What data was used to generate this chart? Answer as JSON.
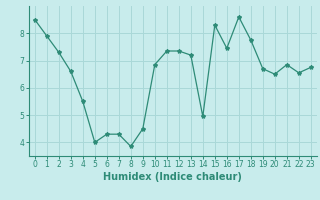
{
  "x": [
    0,
    1,
    2,
    3,
    4,
    5,
    6,
    7,
    8,
    9,
    10,
    11,
    12,
    13,
    14,
    15,
    16,
    17,
    18,
    19,
    20,
    21,
    22,
    23
  ],
  "y": [
    8.5,
    7.9,
    7.3,
    6.6,
    5.5,
    4.0,
    4.3,
    4.3,
    3.85,
    4.5,
    6.85,
    7.35,
    7.35,
    7.2,
    4.95,
    8.3,
    7.45,
    8.6,
    7.75,
    6.7,
    6.5,
    6.85,
    6.55,
    6.75
  ],
  "line_color": "#2e8b77",
  "marker": "*",
  "marker_size": 3.0,
  "bg_color": "#c8ecec",
  "grid_color": "#aad8d8",
  "xlabel": "Humidex (Indice chaleur)",
  "ylim": [
    3.5,
    9.0
  ],
  "xlim": [
    -0.5,
    23.5
  ],
  "yticks": [
    4,
    5,
    6,
    7,
    8
  ],
  "xticks": [
    0,
    1,
    2,
    3,
    4,
    5,
    6,
    7,
    8,
    9,
    10,
    11,
    12,
    13,
    14,
    15,
    16,
    17,
    18,
    19,
    20,
    21,
    22,
    23
  ],
  "tick_label_fontsize": 5.5,
  "xlabel_fontsize": 7.0
}
